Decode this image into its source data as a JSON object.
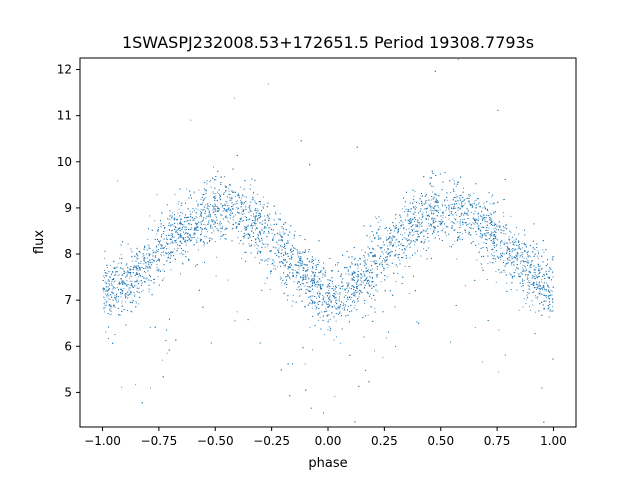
{
  "chart_data": {
    "type": "scatter",
    "title": "1SWASPJ232008.53+172651.5 Period 19308.7793s",
    "xlabel": "phase",
    "ylabel": "flux",
    "xlim": [
      -1.1,
      1.1
    ],
    "ylim": [
      4.25,
      12.25
    ],
    "xticks": [
      -1.0,
      -0.75,
      -0.5,
      -0.25,
      0.0,
      0.25,
      0.5,
      0.75,
      1.0
    ],
    "xtick_labels": [
      "−1.00",
      "−0.75",
      "−0.50",
      "−0.25",
      "0.00",
      "0.25",
      "0.50",
      "0.75",
      "1.00"
    ],
    "yticks": [
      5,
      6,
      7,
      8,
      9,
      10,
      11,
      12
    ],
    "ytick_labels": [
      "5",
      "6",
      "7",
      "8",
      "9",
      "10",
      "11",
      "12"
    ],
    "grid": false,
    "legend": "none",
    "point_color": "#1f77b4",
    "series": [
      {
        "phase": [
          -1.0,
          -0.95,
          -0.9,
          -0.85,
          -0.8,
          -0.75,
          -0.7,
          -0.65,
          -0.6,
          -0.55,
          -0.5,
          -0.45,
          -0.4,
          -0.35,
          -0.3,
          -0.25,
          -0.2,
          -0.15,
          -0.1,
          -0.05,
          0.0,
          0.05,
          0.1,
          0.15,
          0.2,
          0.25,
          0.3,
          0.35,
          0.4,
          0.45,
          0.5,
          0.55,
          0.6,
          0.65,
          0.7,
          0.75,
          0.8,
          0.85,
          0.9,
          0.95,
          1.0
        ],
        "flux_mean": [
          7.2,
          7.25,
          7.35,
          7.5,
          7.75,
          8.0,
          8.3,
          8.5,
          8.7,
          8.85,
          8.95,
          8.95,
          8.85,
          8.7,
          8.5,
          8.3,
          8.05,
          7.75,
          7.5,
          7.25,
          7.1,
          7.1,
          7.25,
          7.5,
          7.8,
          8.05,
          8.3,
          8.5,
          8.7,
          8.85,
          8.95,
          8.95,
          8.85,
          8.7,
          8.5,
          8.3,
          8.05,
          7.8,
          7.55,
          7.35,
          7.2
        ],
        "flux_scatter": 0.35,
        "points_per_phase_step": 180
      }
    ]
  }
}
